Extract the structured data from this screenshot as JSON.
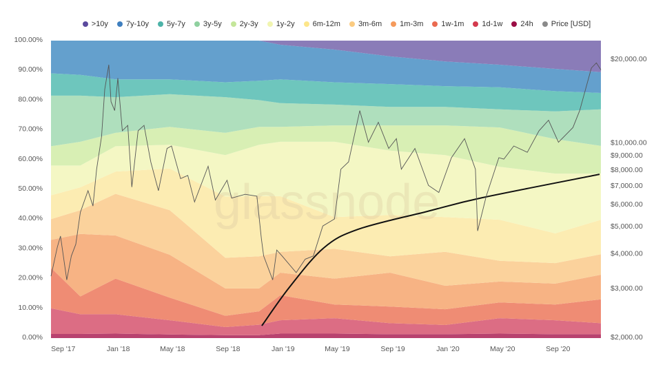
{
  "chart_data": {
    "type": "area",
    "title": "",
    "xlabel": "",
    "ylabel_left": "",
    "ylabel_right": "",
    "stacked": true,
    "watermark": "glassnode",
    "legend_position": "top-center",
    "x_range": [
      "2017-08-11",
      "2020-12-11"
    ],
    "ylim_left": [
      0,
      100
    ],
    "ylim_right_log": [
      2000,
      20000
    ],
    "x_ticks": [
      {
        "date": "2017-09-01",
        "label": "Sep '17"
      },
      {
        "date": "2018-01-01",
        "label": "Jan '18"
      },
      {
        "date": "2018-05-01",
        "label": "May '18"
      },
      {
        "date": "2018-09-01",
        "label": "Sep '18"
      },
      {
        "date": "2019-01-01",
        "label": "Jan '19"
      },
      {
        "date": "2019-05-01",
        "label": "May '19"
      },
      {
        "date": "2019-09-01",
        "label": "Sep '19"
      },
      {
        "date": "2020-01-01",
        "label": "Jan '20"
      },
      {
        "date": "2020-05-01",
        "label": "May '20"
      },
      {
        "date": "2020-09-01",
        "label": "Sep '20"
      }
    ],
    "y_ticks_left": [
      {
        "value": 0,
        "label": "0.00%"
      },
      {
        "value": 10,
        "label": "10.00%"
      },
      {
        "value": 20,
        "label": "20.00%"
      },
      {
        "value": 30,
        "label": "30.00%"
      },
      {
        "value": 40,
        "label": "40.00%"
      },
      {
        "value": 50,
        "label": "50.00%"
      },
      {
        "value": 60,
        "label": "60.00%"
      },
      {
        "value": 70,
        "label": "70.00%"
      },
      {
        "value": 80,
        "label": "80.00%"
      },
      {
        "value": 90,
        "label": "90.00%"
      },
      {
        "value": 100,
        "label": "100.00%"
      }
    ],
    "y_ticks_right": [
      {
        "value": 2000,
        "label": "$2,000.00"
      },
      {
        "value": 3000,
        "label": "$3,000.00"
      },
      {
        "value": 4000,
        "label": "$4,000.00"
      },
      {
        "value": 5000,
        "label": "$5,000.00"
      },
      {
        "value": 6000,
        "label": "$6,000.00"
      },
      {
        "value": 7000,
        "label": "$7,000.00"
      },
      {
        "value": 8000,
        "label": "$8,000.00"
      },
      {
        "value": 9000,
        "label": "$9,000.00"
      },
      {
        "value": 10000,
        "label": "$10,000.00"
      },
      {
        "value": 20000,
        "label": "$20,000.00"
      }
    ],
    "dates": [
      "2017-08-11",
      "2017-10-15",
      "2018-01-01",
      "2018-05-01",
      "2018-09-01",
      "2018-11-15",
      "2019-01-01",
      "2019-05-01",
      "2019-09-01",
      "2020-01-01",
      "2020-05-01",
      "2020-09-01",
      "2020-12-11"
    ],
    "series": [
      {
        "name": "24h",
        "legend_color": "#9b0d45",
        "fill": "#b8426f",
        "values": [
          1.4,
          1.4,
          1.5,
          1.2,
          1,
          1,
          1.5,
          1.5,
          1.3,
          1.3,
          1.5,
          1.3,
          1.3
        ]
      },
      {
        "name": "1d-1w",
        "legend_color": "#d43a4e",
        "fill": "#dc6d84",
        "values": [
          8.6,
          6.6,
          6.5,
          4.8,
          2.7,
          3.5,
          4.5,
          5.2,
          3.7,
          3.1,
          5.2,
          4.7,
          3.7
        ]
      },
      {
        "name": "1w-1m",
        "legend_color": "#ea6a50",
        "fill": "#ef8c74",
        "values": [
          13.6,
          6,
          12,
          7.6,
          3.8,
          4.5,
          8.4,
          4.6,
          5.6,
          5.3,
          5.3,
          5.3,
          8
        ]
      },
      {
        "name": "1m-3m",
        "legend_color": "#f59a5c",
        "fill": "#f7b384",
        "values": [
          9.4,
          21,
          14.5,
          14.4,
          9.2,
          7.7,
          7.6,
          8.7,
          11.4,
          7.9,
          7,
          7,
          8.3
        ]
      },
      {
        "name": "3m-6m",
        "legend_color": "#fbcb80",
        "fill": "#fbd29c",
        "values": [
          7,
          8,
          14,
          15,
          10.3,
          10.8,
          7,
          10,
          5.5,
          11.4,
          7,
          6.9,
          6.9
        ]
      },
      {
        "name": "6m-12m",
        "legend_color": "#fde68a",
        "fill": "#fcecb2",
        "values": [
          8,
          7.7,
          7.5,
          14,
          20.6,
          20.2,
          18.7,
          10.7,
          13.9,
          11.7,
          13.8,
          10,
          11.6
        ]
      },
      {
        "name": "1y-2y",
        "legend_color": "#f1f5b0",
        "fill": "#f4f7c4",
        "values": [
          10,
          7.3,
          8.5,
          8,
          13.9,
          17.3,
          18.3,
          25.3,
          21.6,
          20.8,
          17.8,
          20.1,
          15.5
        ]
      },
      {
        "name": "2y-3y",
        "legend_color": "#c4e69a",
        "fill": "#d8efb4",
        "values": [
          6.5,
          8,
          4.5,
          6,
          7.5,
          6,
          5,
          5.5,
          8.5,
          10,
          13.2,
          11.6,
          9.3
        ]
      },
      {
        "name": "3y-5y",
        "legend_color": "#8fd09f",
        "fill": "#afdfbd",
        "values": [
          17,
          15.5,
          12,
          11,
          12,
          9,
          8,
          7,
          6.2,
          6.2,
          6.1,
          9.3,
          12.3
        ]
      },
      {
        "name": "5y-7y",
        "legend_color": "#4db3a8",
        "fill": "#6ec6bd",
        "values": [
          7.5,
          7,
          6,
          5,
          5,
          6.5,
          8,
          7.5,
          7.7,
          7,
          7.4,
          6.8,
          5.5
        ]
      },
      {
        "name": "7y-10y",
        "legend_color": "#3f7fbf",
        "fill": "#64a0cd",
        "values": [
          11,
          11.5,
          13,
          13,
          14,
          13.5,
          11.6,
          11,
          9.3,
          8.3,
          7.6,
          7.5,
          7
        ]
      },
      {
        "name": ">10y",
        "legend_color": "#5b4a9e",
        "fill": "#8a7cb8",
        "values": [
          0,
          0,
          0,
          0,
          0,
          0,
          1.4,
          3,
          5.3,
          7,
          8.1,
          9.5,
          10.6
        ]
      }
    ],
    "price": {
      "name": "Price [USD]",
      "legend_color": "#8a8a8a",
      "line_color": "#555555",
      "points": [
        [
          "2017-08-11",
          3300
        ],
        [
          "2017-08-25",
          4200
        ],
        [
          "2017-09-01",
          4600
        ],
        [
          "2017-09-15",
          3200
        ],
        [
          "2017-09-25",
          3900
        ],
        [
          "2017-10-05",
          4300
        ],
        [
          "2017-10-15",
          5600
        ],
        [
          "2017-11-01",
          6700
        ],
        [
          "2017-11-12",
          5900
        ],
        [
          "2017-11-20",
          8000
        ],
        [
          "2017-12-01",
          10500
        ],
        [
          "2017-12-08",
          15500
        ],
        [
          "2017-12-17",
          19000
        ],
        [
          "2017-12-22",
          14000
        ],
        [
          "2017-12-30",
          13000
        ],
        [
          "2018-01-06",
          17000
        ],
        [
          "2018-01-16",
          11000
        ],
        [
          "2018-01-28",
          11500
        ],
        [
          "2018-02-06",
          6900
        ],
        [
          "2018-02-20",
          11000
        ],
        [
          "2018-03-05",
          11500
        ],
        [
          "2018-03-20",
          8500
        ],
        [
          "2018-04-06",
          6700
        ],
        [
          "2018-04-25",
          9500
        ],
        [
          "2018-05-05",
          9700
        ],
        [
          "2018-05-25",
          7400
        ],
        [
          "2018-06-10",
          7600
        ],
        [
          "2018-06-25",
          6100
        ],
        [
          "2018-07-25",
          8200
        ],
        [
          "2018-08-10",
          6200
        ],
        [
          "2018-09-05",
          7300
        ],
        [
          "2018-09-15",
          6300
        ],
        [
          "2018-10-15",
          6500
        ],
        [
          "2018-11-10",
          6400
        ],
        [
          "2018-11-20",
          4500
        ],
        [
          "2018-11-25",
          3900
        ],
        [
          "2018-12-15",
          3200
        ],
        [
          "2018-12-24",
          4100
        ],
        [
          "2019-01-05",
          3900
        ],
        [
          "2019-02-05",
          3400
        ],
        [
          "2019-02-25",
          3800
        ],
        [
          "2019-03-15",
          3900
        ],
        [
          "2019-04-05",
          5000
        ],
        [
          "2019-05-01",
          5300
        ],
        [
          "2019-05-15",
          8000
        ],
        [
          "2019-06-01",
          8500
        ],
        [
          "2019-06-26",
          13000
        ],
        [
          "2019-07-15",
          10000
        ],
        [
          "2019-08-06",
          11800
        ],
        [
          "2019-08-29",
          9500
        ],
        [
          "2019-09-15",
          10300
        ],
        [
          "2019-09-26",
          8000
        ],
        [
          "2019-10-26",
          9500
        ],
        [
          "2019-11-25",
          7000
        ],
        [
          "2019-12-18",
          6600
        ],
        [
          "2020-01-15",
          8800
        ],
        [
          "2020-02-13",
          10300
        ],
        [
          "2020-03-08",
          8000
        ],
        [
          "2020-03-13",
          4800
        ],
        [
          "2020-04-01",
          6400
        ],
        [
          "2020-04-29",
          8800
        ],
        [
          "2020-05-10",
          8700
        ],
        [
          "2020-06-01",
          9700
        ],
        [
          "2020-07-01",
          9200
        ],
        [
          "2020-07-27",
          11000
        ],
        [
          "2020-08-17",
          12000
        ],
        [
          "2020-09-08",
          10000
        ],
        [
          "2020-10-10",
          11300
        ],
        [
          "2020-10-25",
          13000
        ],
        [
          "2020-11-20",
          18500
        ],
        [
          "2020-12-01",
          19300
        ],
        [
          "2020-12-11",
          18200
        ]
      ]
    },
    "annotation_curve": {
      "color": "#111111",
      "points": [
        [
          "2018-11-21",
          2190
        ],
        [
          "2019-01-21",
          3010
        ],
        [
          "2019-04-07",
          4170
        ],
        [
          "2019-06-23",
          4870
        ],
        [
          "2019-11-22",
          5640
        ],
        [
          "2020-03-23",
          6320
        ],
        [
          "2020-12-08",
          7670
        ]
      ]
    }
  }
}
